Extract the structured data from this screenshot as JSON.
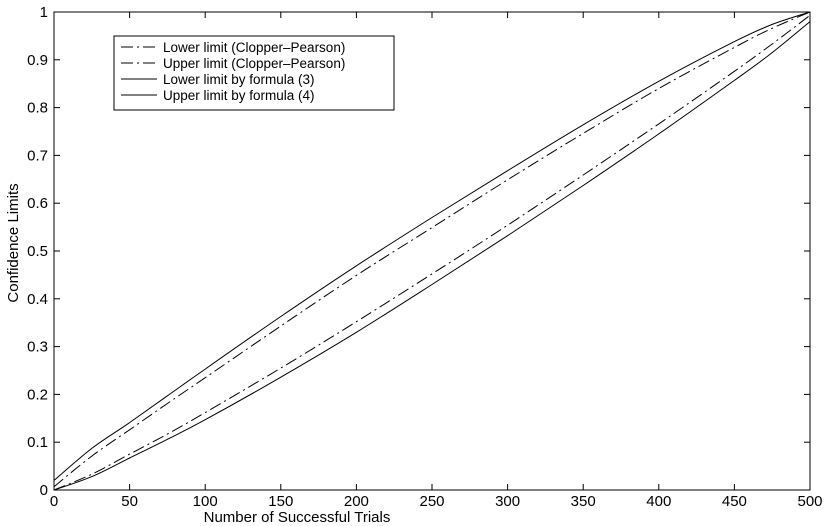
{
  "chart_data": {
    "type": "line",
    "title": "",
    "xlabel": "Number of Successful Trials",
    "ylabel": "Confidence Limits",
    "xlim": [
      0,
      500
    ],
    "ylim": [
      0,
      1
    ],
    "xticks": [
      "0",
      "50",
      "100",
      "150",
      "200",
      "250",
      "300",
      "350",
      "400",
      "450",
      "500"
    ],
    "yticks": [
      "0",
      "0.1",
      "0.2",
      "0.3",
      "0.4",
      "0.5",
      "0.6",
      "0.7",
      "0.8",
      "0.9",
      "1"
    ],
    "grid": false,
    "legend_position": "top-left",
    "x": [
      0,
      25,
      50,
      75,
      100,
      150,
      200,
      250,
      300,
      350,
      400,
      450,
      475,
      500
    ],
    "series": [
      {
        "name": "Lower limit (Clopper–Pearson)",
        "style": "dash-dot",
        "color": "#000000",
        "values": [
          0,
          0.033,
          0.075,
          0.117,
          0.162,
          0.255,
          0.352,
          0.452,
          0.554,
          0.659,
          0.766,
          0.876,
          0.933,
          0.993
        ]
      },
      {
        "name": "Upper limit (Clopper–Pearson)",
        "style": "dash-dot",
        "color": "#000000",
        "values": [
          0.007,
          0.071,
          0.126,
          0.181,
          0.235,
          0.343,
          0.449,
          0.549,
          0.649,
          0.746,
          0.84,
          0.926,
          0.966,
          1.0
        ]
      },
      {
        "name": "Lower limit by formula (3)",
        "style": "solid",
        "color": "#000000",
        "values": [
          0,
          0.028,
          0.067,
          0.106,
          0.147,
          0.236,
          0.33,
          0.43,
          0.532,
          0.637,
          0.745,
          0.857,
          0.915,
          0.98
        ]
      },
      {
        "name": "Upper limit by formula (4)",
        "style": "solid",
        "color": "#000000",
        "values": [
          0.02,
          0.087,
          0.141,
          0.197,
          0.253,
          0.363,
          0.469,
          0.57,
          0.668,
          0.764,
          0.855,
          0.938,
          0.974,
          1.0
        ]
      }
    ]
  }
}
